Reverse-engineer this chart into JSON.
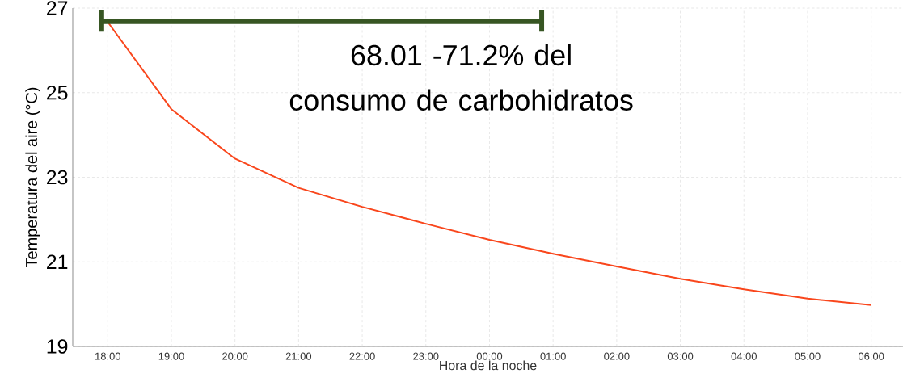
{
  "chart_data": {
    "type": "line",
    "xlabel": "Hora de la noche",
    "ylabel": "Temperatura del aire (°C)",
    "categories": [
      "18:00",
      "19:00",
      "20:00",
      "21:00",
      "22:00",
      "23:00",
      "00:00",
      "01:00",
      "02:00",
      "03:00",
      "04:00",
      "05:00",
      "06:00"
    ],
    "series": [
      {
        "color": "#f9461c",
        "values": [
          26.67,
          24.61,
          23.44,
          22.75,
          22.3,
          21.9,
          21.52,
          21.19,
          20.89,
          20.6,
          20.35,
          20.13,
          19.98
        ]
      }
    ],
    "ylim": [
      19,
      27
    ],
    "yticks": [
      19,
      21,
      23,
      25,
      27
    ],
    "annotations": [
      "68.01 -71.2% del consumo de carbohidratos"
    ],
    "grid": true,
    "marker": "none",
    "line_style": "solid"
  }
}
